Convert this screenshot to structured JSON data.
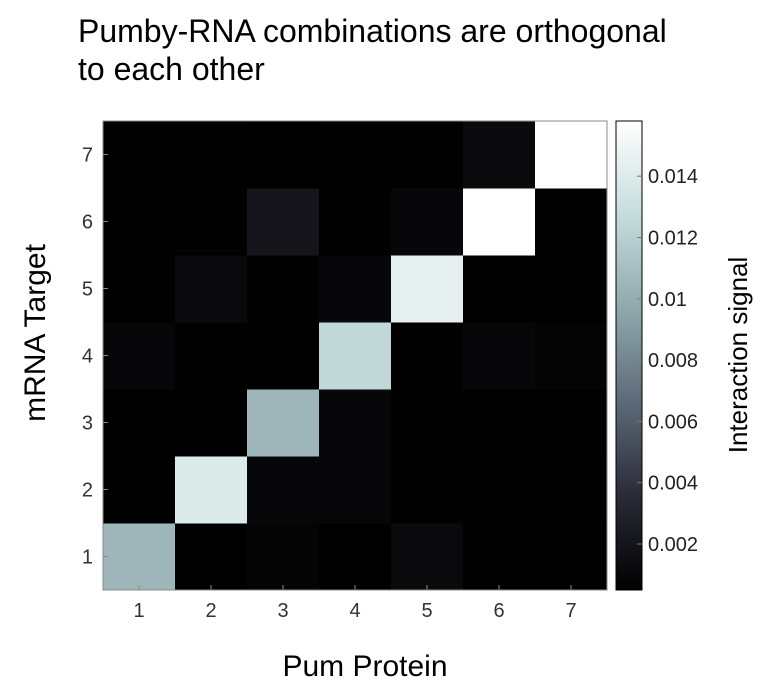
{
  "chart_data": {
    "type": "heatmap",
    "title_lines": [
      "Pumby-RNA combinations are orthogonal",
      "to each other"
    ],
    "xlabel": "Pum Protein",
    "ylabel": "mRNA Target",
    "x_categories": [
      "1",
      "2",
      "3",
      "4",
      "5",
      "6",
      "7"
    ],
    "y_categories": [
      "1",
      "2",
      "3",
      "4",
      "5",
      "6",
      "7"
    ],
    "values": [
      [
        0.0105,
        0.0003,
        0.0008,
        0.0004,
        0.0012,
        0.0005,
        0.0005
      ],
      [
        0.0006,
        0.014,
        0.001,
        0.001,
        0.0006,
        0.0006,
        0.0006
      ],
      [
        0.0006,
        0.0006,
        0.0105,
        0.001,
        0.0006,
        0.0006,
        0.0004
      ],
      [
        0.001,
        0.0006,
        0.0006,
        0.0125,
        0.0006,
        0.001,
        0.0008
      ],
      [
        0.0006,
        0.0012,
        0.0006,
        0.001,
        0.0145,
        0.0006,
        0.0006
      ],
      [
        0.0006,
        0.0006,
        0.002,
        0.0006,
        0.001,
        0.016,
        0.0006
      ],
      [
        0.0006,
        0.0006,
        0.0004,
        0.0006,
        0.0006,
        0.0012,
        0.016
      ]
    ],
    "colorbar": {
      "label": "Interaction signal",
      "range": [
        0.0005,
        0.0158
      ],
      "ticks": [
        0.002,
        0.004,
        0.006,
        0.008,
        0.01,
        0.012,
        0.014
      ],
      "tick_labels": [
        "0.002",
        "0.004",
        "0.006",
        "0.008",
        "0.01",
        "0.012",
        "0.014"
      ],
      "colormap": [
        "#000000",
        "#2a2a38",
        "#5d6a78",
        "#8fa8ac",
        "#c6dcdc",
        "#ffffff"
      ]
    },
    "grid": false
  }
}
